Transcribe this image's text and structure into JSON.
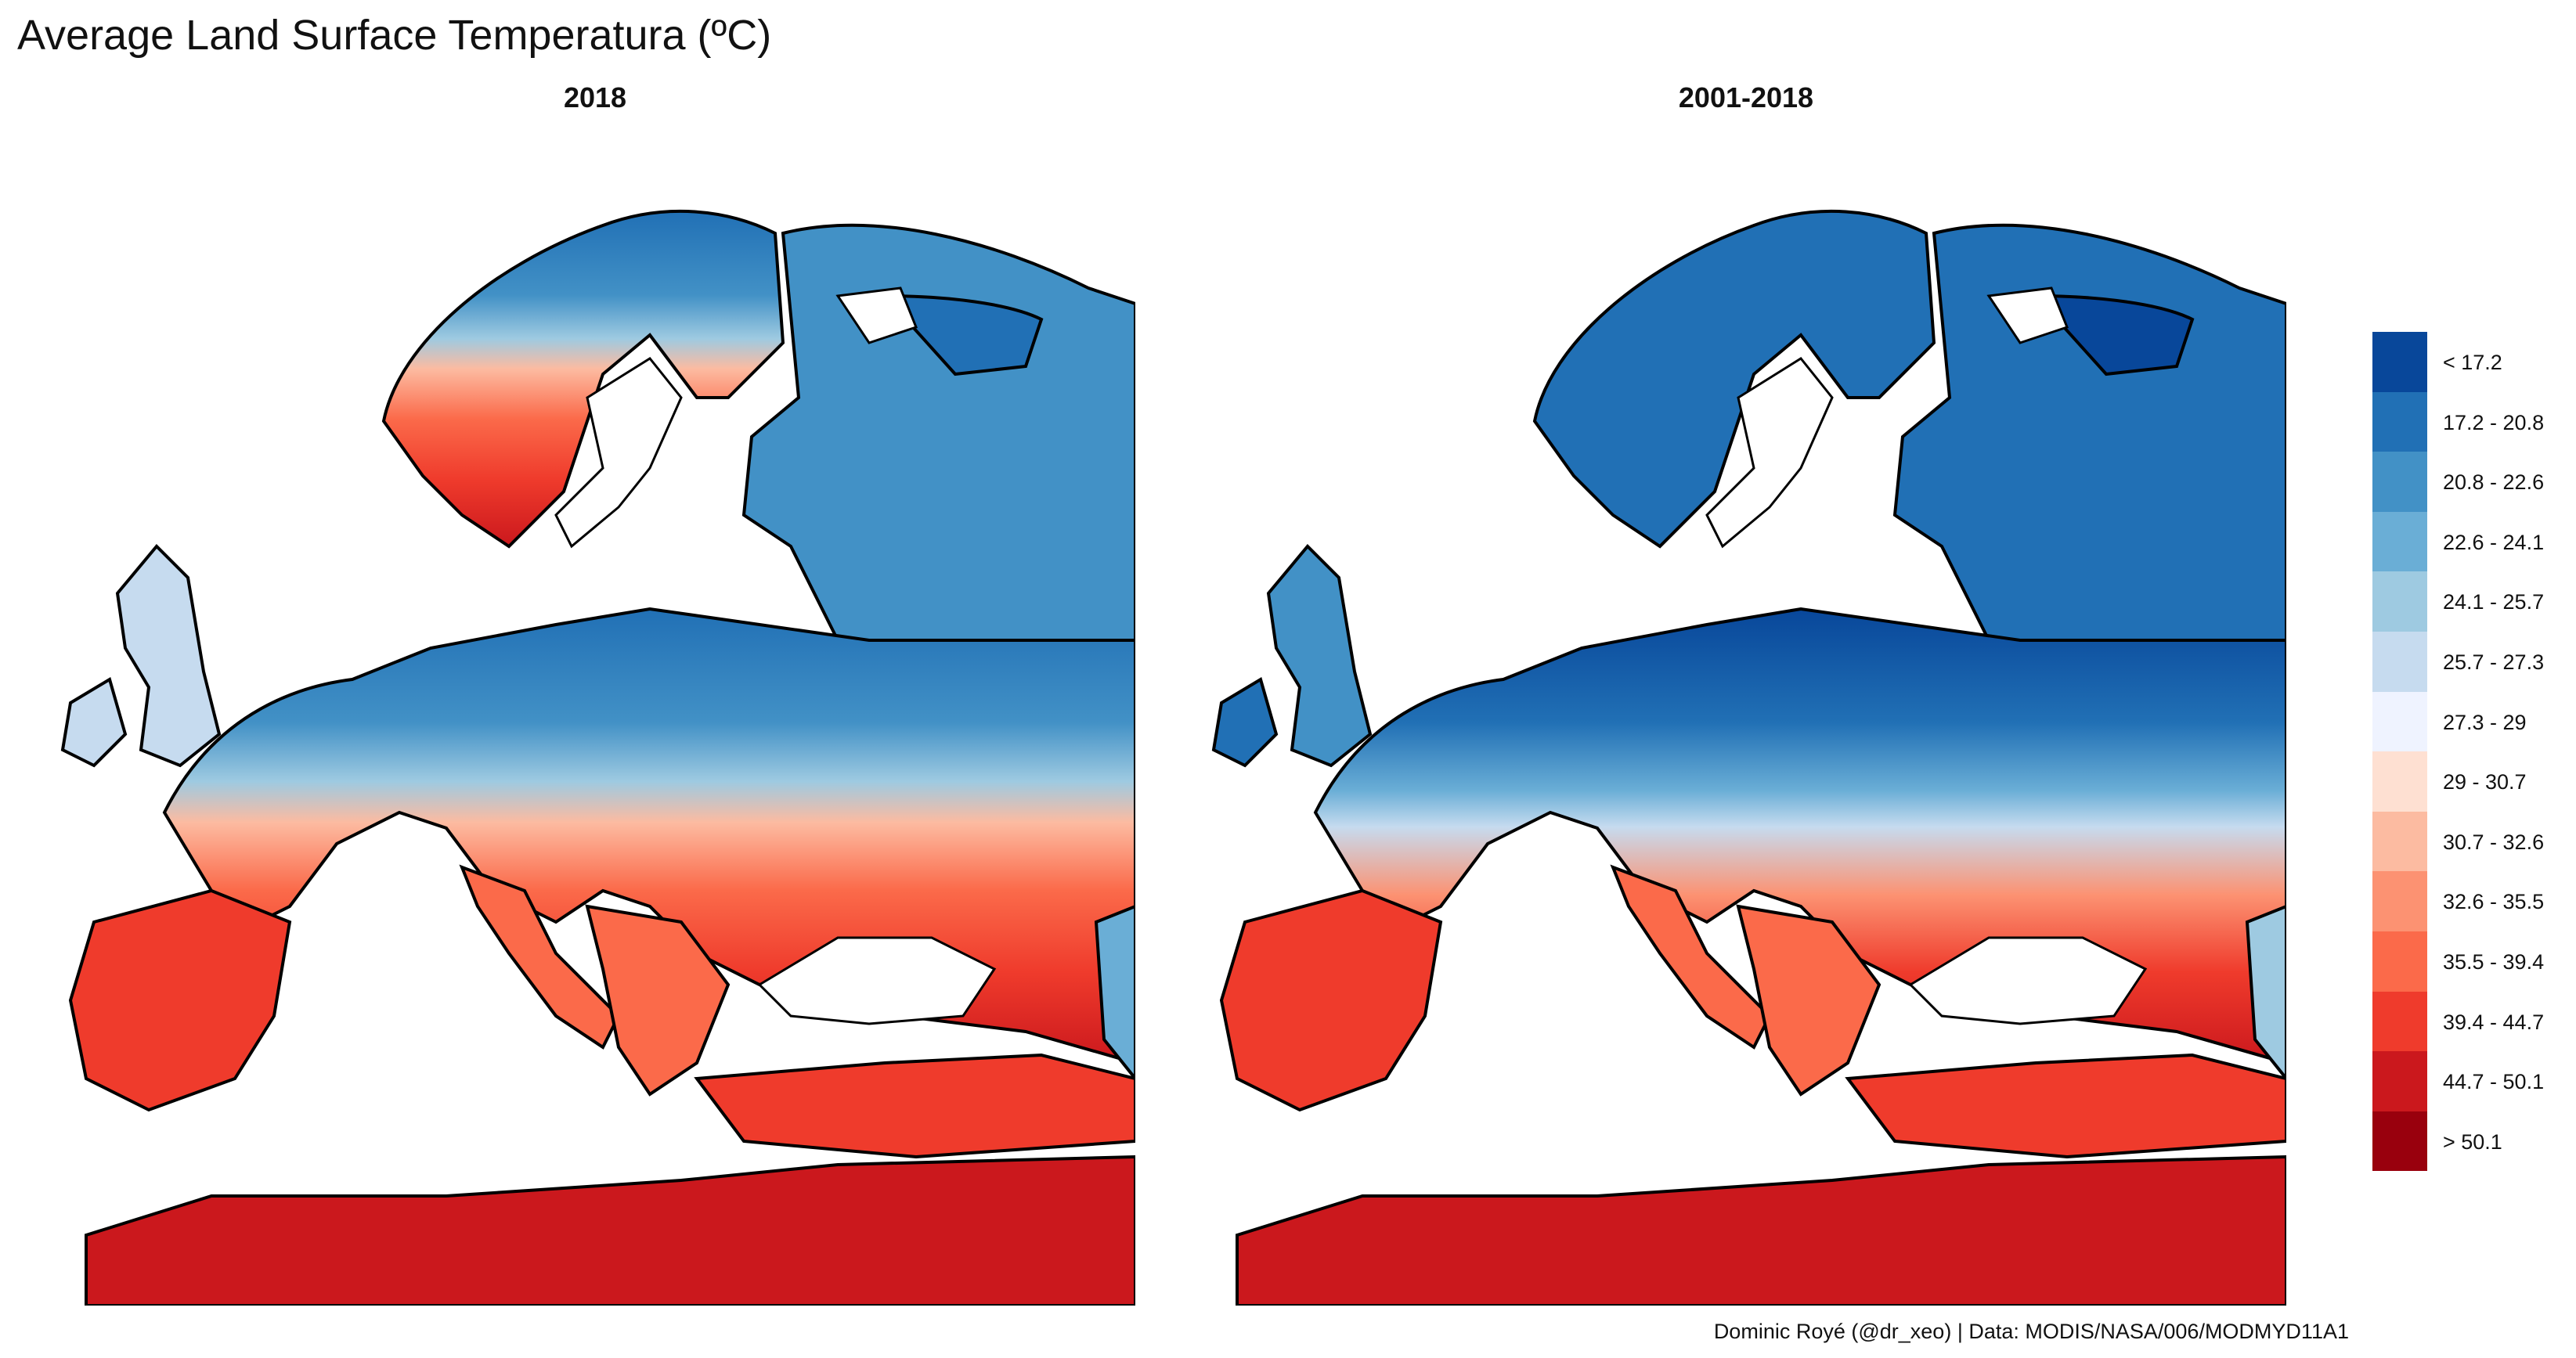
{
  "title": "Average Land Surface Temperatura (ºC)",
  "panels": [
    {
      "title": "2018"
    },
    {
      "title": "2001-2018"
    }
  ],
  "legend": {
    "items": [
      {
        "label": "< 17.2",
        "color": "#08479a"
      },
      {
        "label": "17.2 - 20.8",
        "color": "#2170b5"
      },
      {
        "label": "20.8 - 22.6",
        "color": "#4291c6"
      },
      {
        "label": "22.6 - 24.1",
        "color": "#6aaed6"
      },
      {
        "label": "24.1 - 25.7",
        "color": "#9ecae1"
      },
      {
        "label": "25.7 - 27.3",
        "color": "#c6dbef"
      },
      {
        "label": "27.3 - 29",
        "color": "#eff3ff"
      },
      {
        "label": "29 - 30.7",
        "color": "#fee0d2"
      },
      {
        "label": "30.7 - 32.6",
        "color": "#fcbba1"
      },
      {
        "label": "32.6 - 35.5",
        "color": "#fc9272"
      },
      {
        "label": "35.5 - 39.4",
        "color": "#fb6a4a"
      },
      {
        "label": "39.4 - 44.7",
        "color": "#ef3b2c"
      },
      {
        "label": "44.7 - 50.1",
        "color": "#cb181d"
      },
      {
        "label": "> 50.1",
        "color": "#99000d"
      }
    ]
  },
  "caption": "Dominic Royé (@dr_xeo) | Data: MODIS/NASA/006/MODMYD11A1"
}
